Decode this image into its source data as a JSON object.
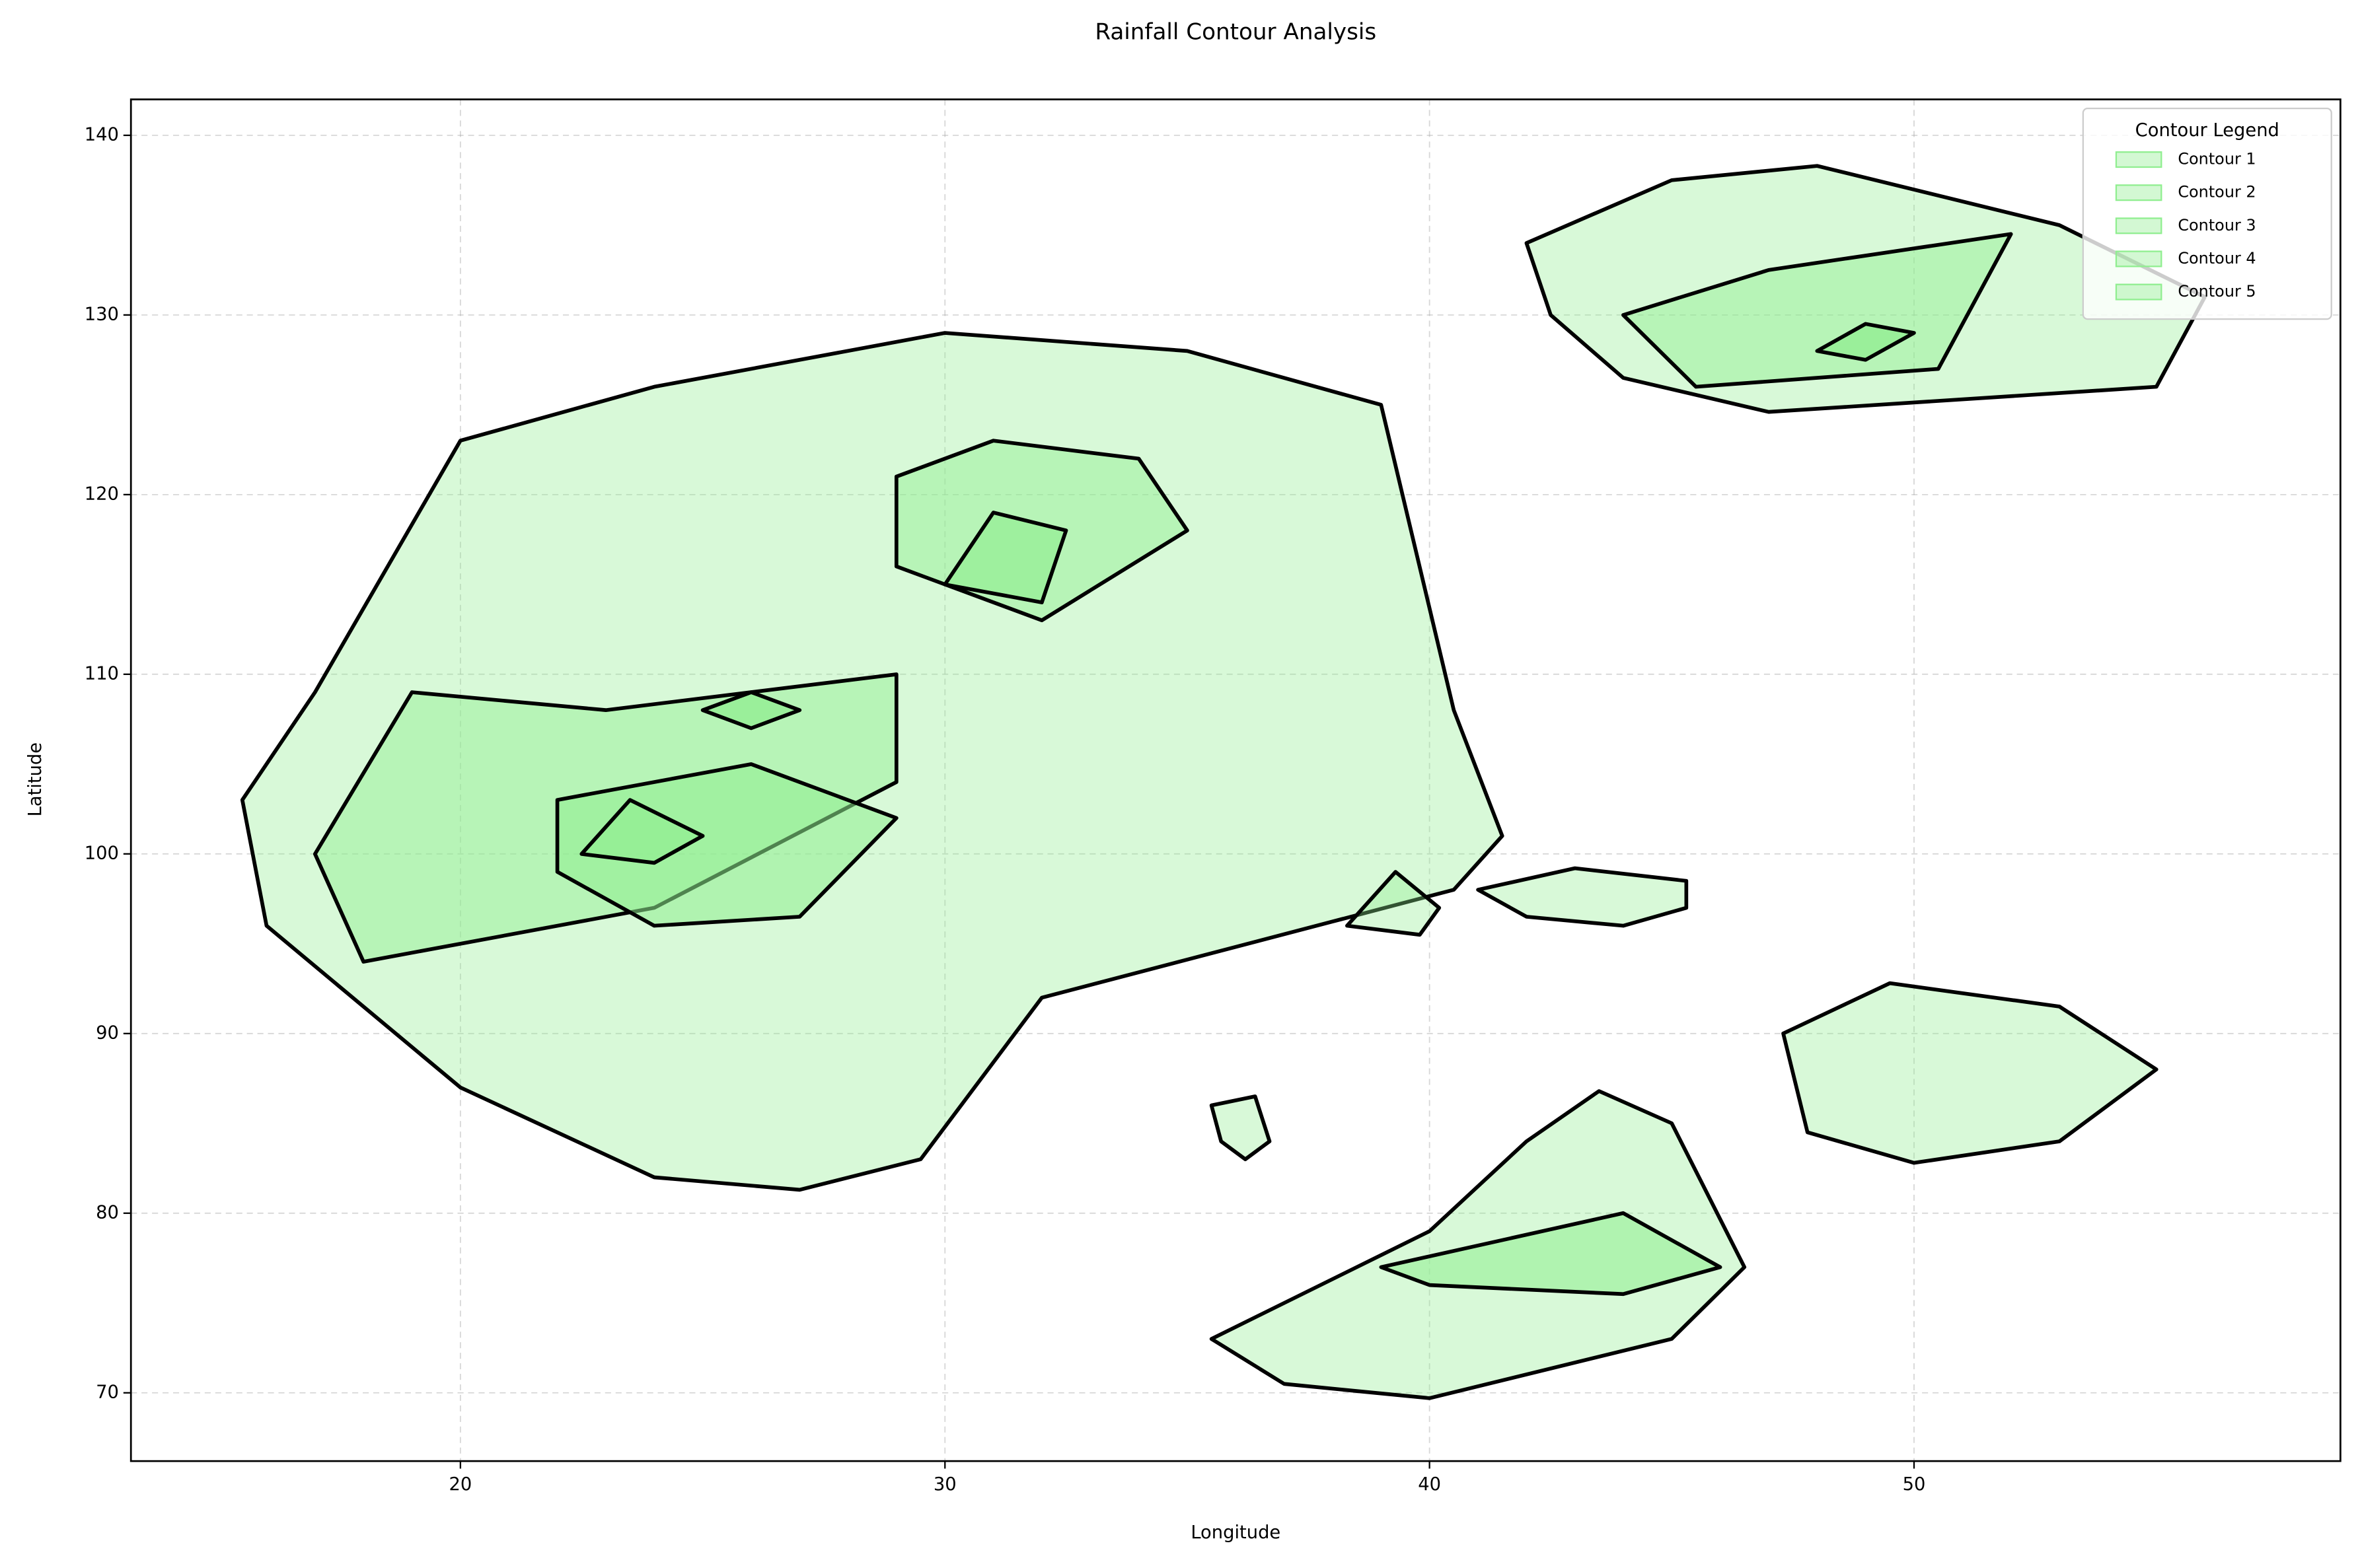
{
  "chart_data": {
    "type": "contour",
    "title": "Rainfall Contour Analysis",
    "x_label": "Longitude",
    "y_label": "Latitude",
    "xlim": [
      13.2,
      58.8
    ],
    "ylim": [
      66.2,
      142
    ],
    "xticks": [
      20,
      30,
      40,
      50
    ],
    "yticks": [
      70,
      80,
      90,
      100,
      110,
      120,
      130,
      140
    ],
    "grid": true,
    "legend_title": "Contour Legend",
    "legend_loc": "upper right",
    "edgecolor": "#000000",
    "series": [
      {
        "name": "Contour 1",
        "color": "#90ee90",
        "polygons": [
          {
            "x": [
              15.5,
              17,
              20,
              24,
              30,
              35,
              39,
              40.5,
              41.5,
              40.5,
              32,
              29.5,
              27,
              24,
              20,
              16
            ],
            "y": [
              103,
              109,
              123,
              126,
              129,
              128,
              125,
              108,
              101,
              98,
              92,
              83,
              81.3,
              82,
              87,
              96
            ]
          },
          {
            "x": [
              42,
              45,
              48,
              53,
              56,
              55,
              47,
              44,
              42.5
            ],
            "y": [
              134,
              137.5,
              138.3,
              135,
              131,
              126,
              124.6,
              126.5,
              130
            ]
          },
          {
            "x": [
              35.5,
              40,
              42,
              43.5,
              45,
              46.5,
              45,
              40,
              37
            ],
            "y": [
              73,
              79,
              84,
              86.8,
              85,
              77,
              73,
              69.7,
              70.5
            ]
          },
          {
            "x": [
              47.3,
              49.5,
              53,
              55,
              53,
              50,
              47.8
            ],
            "y": [
              90,
              92.8,
              91.5,
              88,
              84,
              82.8,
              84.5
            ]
          },
          {
            "x": [
              41,
              43,
              45.3,
              45.3,
              44,
              42
            ],
            "y": [
              98,
              99.2,
              98.5,
              97,
              96,
              96.5
            ]
          },
          {
            "x": [
              35.5,
              36.4,
              36.7,
              36.2,
              35.7
            ],
            "y": [
              86,
              86.5,
              84,
              83,
              84
            ]
          },
          {
            "x": [
              38.3,
              39.3,
              40.2,
              39.8
            ],
            "y": [
              96,
              99,
              97,
              95.5
            ]
          }
        ]
      },
      {
        "name": "Contour 2",
        "color": "#90ee90",
        "polygons": [
          {
            "x": [
              17,
              19,
              23,
              29,
              29,
              24,
              18
            ],
            "y": [
              100,
              109,
              108,
              110,
              104,
              97,
              94
            ]
          },
          {
            "x": [
              29,
              31,
              34,
              35,
              32,
              29
            ],
            "y": [
              121,
              123,
              122,
              118,
              113,
              116
            ]
          },
          {
            "x": [
              44,
              47,
              52,
              50.5,
              45.5
            ],
            "y": [
              130,
              132.5,
              134.5,
              127,
              126
            ]
          }
        ]
      },
      {
        "name": "Contour 3",
        "color": "#90ee90",
        "polygons": [
          {
            "x": [
              22,
              22,
              26,
              29,
              27,
              24
            ],
            "y": [
              99,
              103,
              105,
              102,
              96.5,
              96
            ]
          },
          {
            "x": [
              39,
              44,
              46,
              44,
              40
            ],
            "y": [
              77,
              80,
              77,
              75.5,
              76
            ]
          }
        ]
      },
      {
        "name": "Contour 4",
        "color": "#90ee90",
        "polygons": [
          {
            "x": [
              22.5,
              23.5,
              25,
              24
            ],
            "y": [
              100,
              103,
              101,
              99.5
            ]
          },
          {
            "x": [
              30,
              31,
              32.5,
              32
            ],
            "y": [
              115,
              119,
              118,
              114
            ]
          }
        ]
      },
      {
        "name": "Contour 5",
        "color": "#90ee90",
        "polygons": [
          {
            "x": [
              25,
              26,
              27,
              26
            ],
            "y": [
              108,
              109,
              108,
              107
            ]
          },
          {
            "x": [
              48,
              49,
              50,
              49
            ],
            "y": [
              128,
              129.5,
              129,
              127.5
            ]
          }
        ]
      }
    ]
  }
}
